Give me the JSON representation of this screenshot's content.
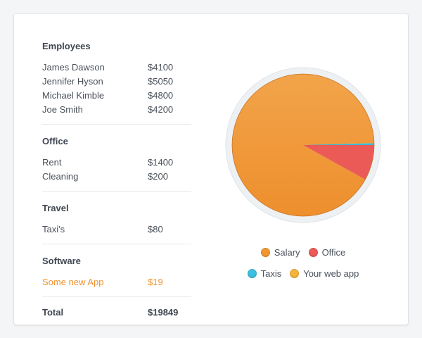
{
  "ledger": {
    "sections": [
      {
        "title": "Employees",
        "rows": [
          {
            "name": "James Dawson",
            "amount": "$4100"
          },
          {
            "name": "Jennifer Hyson",
            "amount": "$5050"
          },
          {
            "name": "Michael Kimble",
            "amount": "$4800"
          },
          {
            "name": "Joe Smith",
            "amount": "$4200"
          }
        ]
      },
      {
        "title": "Office",
        "rows": [
          {
            "name": "Rent",
            "amount": "$1400"
          },
          {
            "name": "Cleaning",
            "amount": "$200"
          }
        ]
      },
      {
        "title": "Travel",
        "rows": [
          {
            "name": "Taxi's",
            "amount": "$80"
          }
        ]
      },
      {
        "title": "Software",
        "rows": [
          {
            "name": "Some new App",
            "amount": "$19"
          }
        ]
      }
    ],
    "total": {
      "label": "Total",
      "amount": "$19849"
    }
  },
  "colors": {
    "salary": "#f0982f",
    "office": "#ec5a58",
    "taxis": "#3cc0e0",
    "web_app": "#f5b33a",
    "highlight_text": "#f0922f"
  },
  "legend": {
    "row1": [
      {
        "label": "Salary",
        "color_key": "salary"
      },
      {
        "label": "Office",
        "color_key": "office"
      }
    ],
    "row2": [
      {
        "label": "Taxis",
        "color_key": "taxis"
      },
      {
        "label": "Your web app",
        "color_key": "web_app"
      }
    ]
  },
  "chart_data": {
    "type": "pie",
    "categories": [
      "Salary",
      "Office",
      "Taxis",
      "Your web app"
    ],
    "values": [
      18150,
      1600,
      80,
      19
    ],
    "legend_position": "bottom"
  }
}
